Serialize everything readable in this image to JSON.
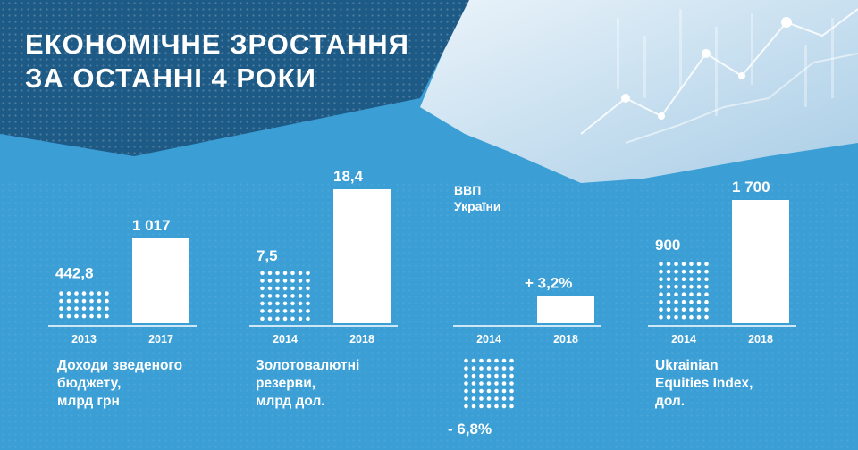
{
  "title": {
    "line1": "ЕКОНОМІЧНЕ ЗРОСТАННЯ",
    "line2": "ЗА ОСТАННІ 4 РОКИ"
  },
  "colors": {
    "background": "#3b9fd5",
    "header_dark": "#1e5a86",
    "bar_white": "#ffffff",
    "axis": "#ffffff"
  },
  "chart_data": [
    {
      "type": "bar",
      "categories": [
        "2013",
        "2017"
      ],
      "values": [
        442.8,
        1017
      ],
      "value_labels": [
        "442,8",
        "1 017"
      ],
      "xlabel": "Доходи зведеного\nбюджету,\nмлрд грн",
      "ylabel": ""
    },
    {
      "type": "bar",
      "categories": [
        "2014",
        "2018"
      ],
      "values": [
        7.5,
        18.4
      ],
      "value_labels": [
        "7,5",
        "18,4"
      ],
      "xlabel": "Золотовалютні\nрезерви,\nмлрд дол.",
      "ylabel": ""
    },
    {
      "type": "bar",
      "title": "ВВП\nУкраїни",
      "categories": [
        "2014",
        "2018"
      ],
      "values": [
        -6.8,
        3.2
      ],
      "value_labels": [
        "- 6,8%",
        "+ 3,2%"
      ],
      "xlabel": "",
      "ylabel": ""
    },
    {
      "type": "bar",
      "categories": [
        "2014",
        "2018"
      ],
      "values": [
        900,
        1700
      ],
      "value_labels": [
        "900",
        "1 700"
      ],
      "xlabel": "Ukrainian\nEquities Index,\nдол.",
      "ylabel": ""
    }
  ]
}
